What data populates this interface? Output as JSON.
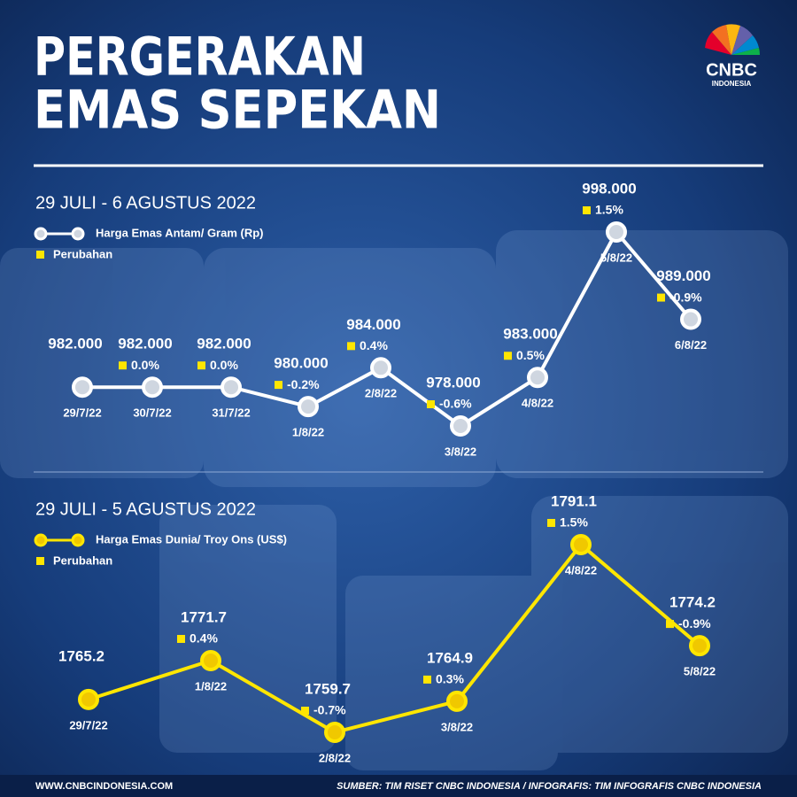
{
  "header": {
    "title": [
      "PERGERAKAN",
      "EMAS SEPEKAN"
    ],
    "logo": "CNBC",
    "logo_sub": "INDONESIA"
  },
  "chart_data": [
    {
      "type": "line",
      "subtitle": "29 JULI - 6 AGUSTUS 2022",
      "categories": [
        "29/7/22",
        "30/7/22",
        "31/7/22",
        "1/8/22",
        "2/8/22",
        "3/8/22",
        "4/8/22",
        "5/8/22",
        "6/8/22"
      ],
      "series": [
        {
          "name": "Harga Emas Antam/ Gram (Rp)",
          "color": "#ffffff",
          "values": [
            982000,
            982000,
            982000,
            980000,
            984000,
            978000,
            983000,
            998000,
            989000
          ],
          "value_labels": [
            "982.000",
            "982.000",
            "982.000",
            "980.000",
            "984.000",
            "978.000",
            "983.000",
            "998.000",
            "989.000"
          ]
        },
        {
          "name": "Perubahan",
          "color": "#ffe600",
          "values": [
            null,
            0.0,
            0.0,
            -0.2,
            0.4,
            -0.6,
            0.5,
            1.5,
            -0.9
          ],
          "value_labels": [
            null,
            "0.0%",
            "0.0%",
            "-0.2%",
            "0.4%",
            "-0.6%",
            "0.5%",
            "1.5%",
            "-0.9%"
          ]
        }
      ]
    },
    {
      "type": "line",
      "subtitle": "29 JULI - 5 AGUSTUS 2022",
      "categories": [
        "29/7/22",
        "1/8/22",
        "2/8/22",
        "3/8/22",
        "4/8/22",
        "5/8/22"
      ],
      "series": [
        {
          "name": "Harga Emas Dunia/ Troy Ons (US$)",
          "color": "#ffe600",
          "values": [
            1765.2,
            1771.7,
            1759.7,
            1764.9,
            1791.1,
            1774.2
          ]
        },
        {
          "name": "Perubahan",
          "color": "#ffe600",
          "values": [
            null,
            0.4,
            -0.7,
            0.3,
            1.5,
            -0.9
          ],
          "value_labels": [
            null,
            "0.4%",
            "-0.7%",
            "0.3%",
            "1.5%",
            "-0.9%"
          ]
        }
      ]
    }
  ],
  "footer": {
    "website": "WWW.CNBCINDONESIA.COM",
    "source": "SUMBER: TIM RISET CNBC INDONESIA / INFOGRAFIS: TIM INFOGRAFIS CNBC INDONESIA"
  }
}
